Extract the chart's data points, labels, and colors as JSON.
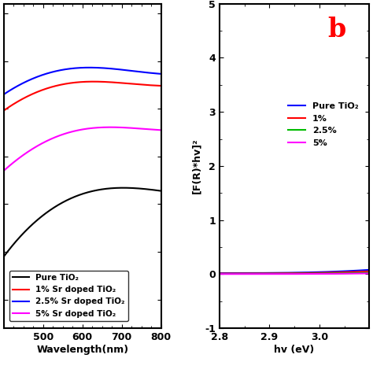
{
  "panel_a": {
    "xlabel": "Wavelength(nm)",
    "ylabel": "",
    "xlim": [
      400,
      800
    ],
    "xticks": [
      500,
      600,
      700,
      800
    ],
    "lines": [
      {
        "label": "Pure TiO₂",
        "color": "#000000"
      },
      {
        "label": "1% Sr doped TiO₂",
        "color": "#ff0000"
      },
      {
        "label": "2.5% Sr doped TiO₂",
        "color": "#0000ff"
      },
      {
        "label": "5% Sr doped TiO₂",
        "color": "#ff00ff"
      }
    ]
  },
  "panel_b": {
    "xlabel": "hv (eV)",
    "ylabel": "[F(R)*hv]²",
    "xlim": [
      2.8,
      3.1
    ],
    "ylim": [
      -1,
      5
    ],
    "xticks": [
      2.8,
      2.9,
      3.0
    ],
    "yticks": [
      -1,
      0,
      1,
      2,
      3,
      4,
      5
    ],
    "label_text": "b",
    "label_color": "#ff0000",
    "lines": [
      {
        "label": "Pure TiO₂",
        "color": "#0000ff"
      },
      {
        "label": "1%",
        "color": "#ff0000"
      },
      {
        "label": "2.5%",
        "color": "#00bb00"
      },
      {
        "label": "5%",
        "color": "#ff00ff"
      }
    ]
  },
  "fig_width": 4.74,
  "fig_height": 4.74,
  "dpi": 100,
  "background_color": "#ffffff"
}
